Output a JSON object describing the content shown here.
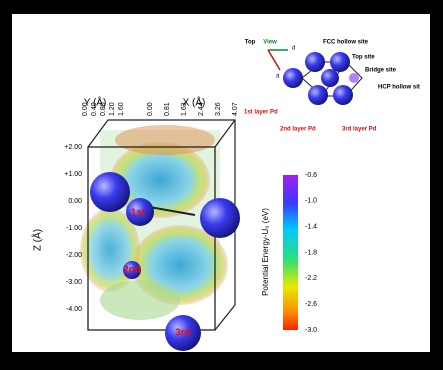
{
  "inset": {
    "view": [
      "Top",
      "View"
    ],
    "axis_labels": [
      "a",
      "d"
    ],
    "sites": [
      "FCC hollow site",
      "Top site",
      "Bridge site",
      "HCP hollow sit"
    ],
    "layers": [
      "1st layer Pd",
      "2nd layer Pd",
      "3rd layer Pd"
    ]
  },
  "plot": {
    "x_axis_label": "X (Å)",
    "y_axis_label": "Y (Å)",
    "z_axis_label": "Z (Å)",
    "x_ticks": [
      "0.00",
      "0.81",
      "1.63",
      "2.44",
      "3.26",
      "4.07"
    ],
    "y_ticks": [
      "0.00",
      "0.40",
      "0.80",
      "1.20",
      "1.60"
    ],
    "z_ticks": [
      "+2.00",
      "+1.00",
      "0.00",
      "-1.00",
      "-2.00",
      "-3.00",
      "-4.00"
    ],
    "atom_labels": [
      "1st",
      "2nd",
      "3rd"
    ]
  },
  "colorbar": {
    "label": "Potential Energy-U₀ (eV)",
    "ticks": [
      "-0.6",
      "-1.0",
      "-1.4",
      "-1.8",
      "-2.2",
      "-2.6",
      "-3.0"
    ]
  }
}
